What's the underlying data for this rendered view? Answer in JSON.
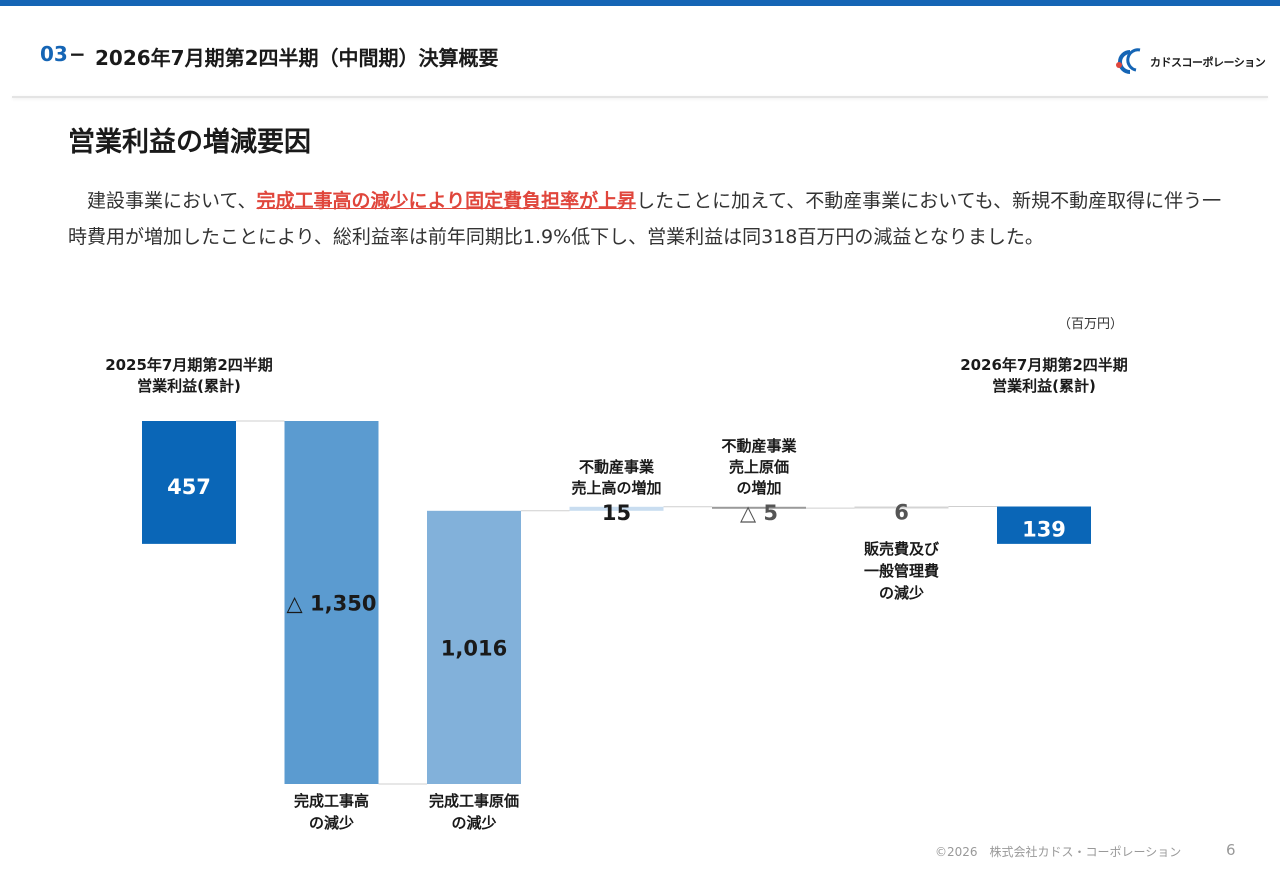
{
  "header": {
    "section_number": "03",
    "section_dash": "−",
    "section_title": "2026年7月期第2四半期（中間期）決算概要",
    "logo_text": "カドスコーポレーション",
    "logo_colors": {
      "c1": "#e0463c",
      "c2": "#1565b5"
    }
  },
  "page": {
    "heading": "営業利益の増減要因",
    "body_pre": "　建設事業において、",
    "body_highlight": "完成工事高の減少により固定費負担率が上昇",
    "body_post": "したことに加えて、不動産事業においても、新規不動産取得に伴う一時費用が増加したことにより、総利益率は前年同期比1.9%低下し、営業利益は同318百万円の減益となりました。",
    "unit": "（百万円）"
  },
  "chart_data": {
    "type": "waterfall",
    "unit": "（百万円）",
    "steps": [
      {
        "name": "2025年7月期第2四半期\n営業利益(累計)",
        "value": 457,
        "label": "457",
        "kind": "total",
        "color": "#0a66b7",
        "label_color": "#ffffff",
        "name_pos": "top"
      },
      {
        "name": "完成工事高\nの減少",
        "value": -1350,
        "label": "△ 1,350",
        "kind": "delta",
        "color": "#5b9bd0",
        "label_color": "#1a1a1a",
        "name_pos": "bottom"
      },
      {
        "name": "完成工事原価\nの減少",
        "value": 1016,
        "label": "1,016",
        "kind": "delta",
        "color": "#82b1da",
        "label_color": "#1a1a1a",
        "name_pos": "bottom"
      },
      {
        "name": "不動産事業\n売上高の増加",
        "value": 15,
        "label": "15",
        "kind": "delta",
        "color": "#c9ddf0",
        "label_color": "#1a1a1a",
        "name_pos": "top"
      },
      {
        "name": "不動産事業\n売上原価\nの増加",
        "value": -5,
        "label": "△ 5",
        "kind": "delta",
        "color": "#9a9a9a",
        "label_color": "#555555",
        "name_pos": "top"
      },
      {
        "name": "販売費及び\n一般管理費\nの減少",
        "value": 6,
        "label": "6",
        "kind": "delta",
        "color": "#d4d4d4",
        "label_color": "#555555",
        "name_pos": "bottom"
      },
      {
        "name": "2026年7月期第2四半期\n営業利益(累計)",
        "value": 139,
        "label": "139",
        "kind": "total",
        "color": "#0a66b7",
        "label_color": "#ffffff",
        "name_pos": "top"
      }
    ]
  },
  "footer": {
    "copyright": "©2026　株式会社カドス・コーポレーション",
    "page_number": "6"
  }
}
